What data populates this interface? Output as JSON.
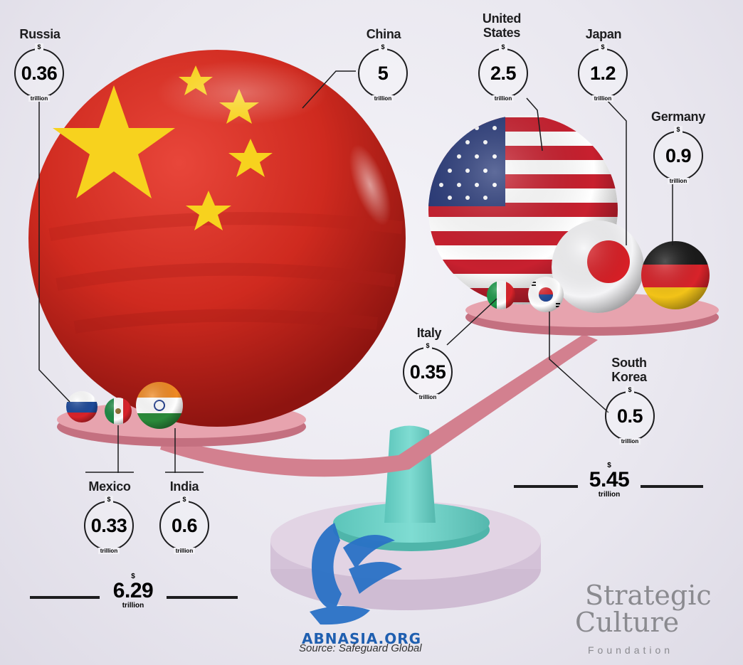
{
  "countries": {
    "russia": {
      "name": "Russia",
      "currency": "$",
      "value": "0.36",
      "unit": "trillion"
    },
    "china": {
      "name": "China",
      "currency": "$",
      "value": "5",
      "unit": "trillion"
    },
    "us": {
      "name1": "United",
      "name2": "States",
      "currency": "$",
      "value": "2.5",
      "unit": "trillion"
    },
    "japan": {
      "name": "Japan",
      "currency": "$",
      "value": "1.2",
      "unit": "trillion"
    },
    "germany": {
      "name": "Germany",
      "currency": "$",
      "value": "0.9",
      "unit": "trillion"
    },
    "italy": {
      "name": "Italy",
      "currency": "$",
      "value": "0.35",
      "unit": "trillion"
    },
    "south_korea": {
      "name1": "South",
      "name2": "Korea",
      "currency": "$",
      "value": "0.5",
      "unit": "trillion"
    },
    "mexico": {
      "name": "Mexico",
      "currency": "$",
      "value": "0.33",
      "unit": "trillion"
    },
    "india": {
      "name": "India",
      "currency": "$",
      "value": "0.6",
      "unit": "trillion"
    }
  },
  "totals": {
    "left": {
      "currency": "$",
      "value": "6.29",
      "unit": "trillion"
    },
    "right": {
      "currency": "$",
      "value": "5.45",
      "unit": "trillion"
    }
  },
  "source": "Source: Safeguard Global",
  "watermark": "ABNASIA.ORG",
  "brand": {
    "line1": "Strategic",
    "line2": "Culture",
    "line3": "Foundation"
  },
  "colors": {
    "china_red": "#d42a20",
    "star_yellow": "#f7d21e",
    "scale_pink": "#d98a98",
    "stand_teal": "#6fd3c8",
    "base_lilac": "#d9c8dc",
    "text_dark": "#1d1d1f",
    "watermark_blue": "#1f5fb0"
  }
}
